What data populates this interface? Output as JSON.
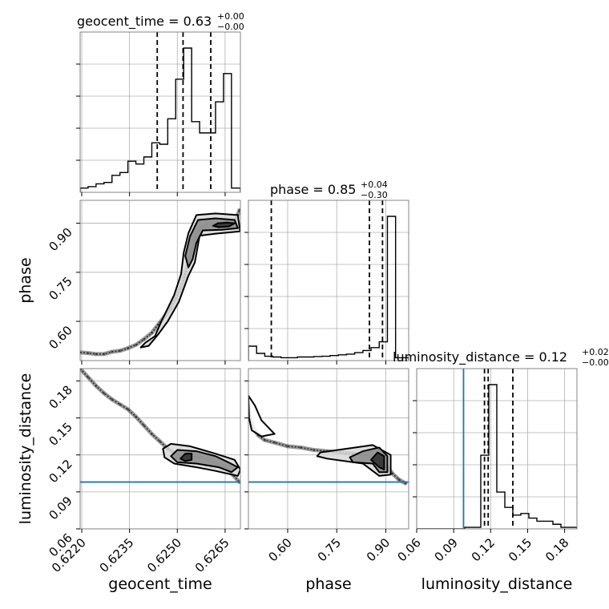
{
  "chart_data": {
    "type": "corner",
    "truth_color": "#1f77b4",
    "titles": [
      {
        "param": "geocent_time",
        "text": "geocent_time = 0.63",
        "sup": "+0.00",
        "sub": "−0.00"
      },
      {
        "param": "phase",
        "text": "phase = 0.85",
        "sup": "+0.04",
        "sub": "−0.30"
      },
      {
        "param": "luminosity_distance",
        "text": "luminosity_distance = 0.12",
        "sup": "+0.02",
        "sub": "−0.00"
      }
    ],
    "axis_labels": {
      "x": [
        "geocent_time",
        "phase",
        "luminosity_distance"
      ],
      "y": [
        "phase",
        "luminosity_distance"
      ]
    },
    "ticks": {
      "geocent_time": [
        "0.6220",
        "0.6235",
        "0.6250",
        "0.6265"
      ],
      "phase": [
        "0.60",
        "0.75",
        "0.90"
      ],
      "luminosity_distance": [
        "0.06",
        "0.09",
        "0.12",
        "0.15",
        "0.18"
      ]
    },
    "ranges": {
      "geocent_time": [
        0.62195,
        0.62698
      ],
      "phase": [
        0.48,
        0.97
      ],
      "luminosity_distance": [
        0.06,
        0.19
      ]
    },
    "truths": {
      "luminosity_distance": 0.098
    },
    "histograms": {
      "geocent_time": {
        "edges": [
          0.62195,
          0.6222,
          0.62245,
          0.6227,
          0.62295,
          0.6232,
          0.62345,
          0.6237,
          0.62395,
          0.6242,
          0.62445,
          0.6247,
          0.62495,
          0.6252,
          0.62545,
          0.6257,
          0.62595,
          0.6262,
          0.62645,
          0.6267,
          0.62698
        ],
        "counts": [
          0.03,
          0.04,
          0.06,
          0.07,
          0.12,
          0.14,
          0.22,
          0.2,
          0.25,
          0.35,
          0.34,
          0.52,
          0.8,
          1.02,
          0.5,
          0.42,
          0.42,
          0.64,
          0.84,
          0.03
        ],
        "quantiles": [
          0.62437,
          0.62518,
          0.62605
        ]
      },
      "phase": {
        "edges": [
          0.48,
          0.505,
          0.53,
          0.555,
          0.58,
          0.605,
          0.63,
          0.655,
          0.68,
          0.705,
          0.73,
          0.755,
          0.78,
          0.805,
          0.83,
          0.855,
          0.88,
          0.905,
          0.93,
          0.955,
          0.97
        ],
        "counts": [
          0.1,
          0.05,
          0.03,
          0.025,
          0.02,
          0.02,
          0.025,
          0.025,
          0.028,
          0.03,
          0.035,
          0.04,
          0.045,
          0.055,
          0.07,
          0.09,
          0.13,
          1.0,
          0.02,
          0.02
        ],
        "quantiles": [
          0.55,
          0.85,
          0.89
        ]
      },
      "luminosity_distance": {
        "edges": [
          0.06,
          0.0665,
          0.073,
          0.0795,
          0.086,
          0.0925,
          0.099,
          0.1055,
          0.112,
          0.1185,
          0.125,
          0.1315,
          0.138,
          0.1445,
          0.151,
          0.1575,
          0.164,
          0.1705,
          0.177,
          0.1835,
          0.19
        ],
        "counts": [
          0,
          0,
          0,
          0,
          0,
          0,
          0.01,
          0.01,
          0.48,
          0.94,
          0.24,
          0.14,
          0.09,
          0.1,
          0.07,
          0.05,
          0.05,
          0.03,
          0.01,
          0.01
        ],
        "quantiles": [
          0.115,
          0.118,
          0.138
        ]
      }
    },
    "samples_2d": {
      "phase_vs_geocent_time": [
        [
          0.62195,
          0.505
        ],
        [
          0.6222,
          0.503
        ],
        [
          0.62245,
          0.5
        ],
        [
          0.6227,
          0.5
        ],
        [
          0.62295,
          0.507
        ],
        [
          0.6232,
          0.51
        ],
        [
          0.62345,
          0.518
        ],
        [
          0.6237,
          0.528
        ],
        [
          0.62395,
          0.545
        ],
        [
          0.6242,
          0.565
        ],
        [
          0.6244,
          0.59
        ],
        [
          0.6246,
          0.615
        ],
        [
          0.62478,
          0.64
        ],
        [
          0.62495,
          0.67
        ],
        [
          0.6251,
          0.7
        ],
        [
          0.62522,
          0.735
        ],
        [
          0.62532,
          0.77
        ],
        [
          0.62542,
          0.81
        ],
        [
          0.62555,
          0.85
        ],
        [
          0.6257,
          0.88
        ],
        [
          0.62595,
          0.895
        ],
        [
          0.62625,
          0.9
        ],
        [
          0.62655,
          0.9
        ],
        [
          0.6268,
          0.9
        ],
        [
          0.62695,
          0.94
        ]
      ],
      "luminosity_distance_vs_geocent_time": [
        [
          0.62195,
          0.19
        ],
        [
          0.6222,
          0.183
        ],
        [
          0.62245,
          0.176
        ],
        [
          0.6227,
          0.17
        ],
        [
          0.62295,
          0.165
        ],
        [
          0.6232,
          0.161
        ],
        [
          0.62345,
          0.157
        ],
        [
          0.6237,
          0.151
        ],
        [
          0.62395,
          0.144
        ],
        [
          0.6242,
          0.137
        ],
        [
          0.62445,
          0.131
        ],
        [
          0.6247,
          0.125
        ],
        [
          0.62495,
          0.121
        ],
        [
          0.6252,
          0.119
        ],
        [
          0.62545,
          0.119
        ],
        [
          0.6257,
          0.118
        ],
        [
          0.62595,
          0.116
        ],
        [
          0.6262,
          0.113
        ],
        [
          0.62645,
          0.111
        ],
        [
          0.6267,
          0.105
        ],
        [
          0.62695,
          0.098
        ]
      ],
      "luminosity_distance_vs_phase": [
        [
          0.48,
          0.16
        ],
        [
          0.485,
          0.15
        ],
        [
          0.495,
          0.142
        ],
        [
          0.51,
          0.136
        ],
        [
          0.53,
          0.132
        ],
        [
          0.56,
          0.13
        ],
        [
          0.6,
          0.127
        ],
        [
          0.64,
          0.126
        ],
        [
          0.68,
          0.124
        ],
        [
          0.72,
          0.123
        ],
        [
          0.76,
          0.122
        ],
        [
          0.8,
          0.121
        ],
        [
          0.84,
          0.12
        ],
        [
          0.88,
          0.118
        ],
        [
          0.9,
          0.112
        ],
        [
          0.92,
          0.105
        ],
        [
          0.94,
          0.1
        ],
        [
          0.96,
          0.097
        ]
      ]
    },
    "contours": {
      "phase_vs_geocent_time": [
        [
          [
            0.62612,
            0.892
          ],
          [
            0.62628,
            0.9
          ],
          [
            0.62655,
            0.902
          ],
          [
            0.6268,
            0.9
          ],
          [
            0.62662,
            0.89
          ],
          [
            0.6263,
            0.888
          ]
        ],
        [
          [
            0.62525,
            0.8
          ],
          [
            0.6254,
            0.86
          ],
          [
            0.62565,
            0.91
          ],
          [
            0.6262,
            0.915
          ],
          [
            0.6268,
            0.91
          ],
          [
            0.6269,
            0.885
          ],
          [
            0.6264,
            0.88
          ],
          [
            0.6258,
            0.878
          ],
          [
            0.6256,
            0.84
          ],
          [
            0.62548,
            0.79
          ],
          [
            0.62535,
            0.765
          ]
        ],
        [
          [
            0.624,
            0.535
          ],
          [
            0.6243,
            0.555
          ],
          [
            0.6245,
            0.6
          ],
          [
            0.6249,
            0.68
          ],
          [
            0.62512,
            0.745
          ],
          [
            0.6252,
            0.81
          ],
          [
            0.62535,
            0.87
          ],
          [
            0.6256,
            0.925
          ],
          [
            0.6262,
            0.93
          ],
          [
            0.6269,
            0.925
          ],
          [
            0.62697,
            0.875
          ],
          [
            0.6262,
            0.868
          ],
          [
            0.6257,
            0.862
          ],
          [
            0.62555,
            0.78
          ],
          [
            0.62535,
            0.74
          ],
          [
            0.62505,
            0.66
          ],
          [
            0.6247,
            0.6
          ],
          [
            0.6244,
            0.56
          ],
          [
            0.6241,
            0.525
          ],
          [
            0.62385,
            0.52
          ]
        ]
      ],
      "luminosity_distance_vs_geocent_time": [
        [
          [
            0.6251,
            0.117
          ],
          [
            0.62525,
            0.121
          ],
          [
            0.62545,
            0.121
          ],
          [
            0.62545,
            0.116
          ],
          [
            0.62525,
            0.115
          ]
        ],
        [
          [
            0.6248,
            0.119
          ],
          [
            0.625,
            0.124
          ],
          [
            0.6256,
            0.123
          ],
          [
            0.6262,
            0.119
          ],
          [
            0.6266,
            0.114
          ],
          [
            0.6269,
            0.11
          ],
          [
            0.6267,
            0.106
          ],
          [
            0.6263,
            0.11
          ],
          [
            0.6256,
            0.113
          ],
          [
            0.625,
            0.114
          ]
        ],
        [
          [
            0.62455,
            0.125
          ],
          [
            0.6248,
            0.129
          ],
          [
            0.6254,
            0.127
          ],
          [
            0.6262,
            0.121
          ],
          [
            0.6268,
            0.116
          ],
          [
            0.62698,
            0.108
          ],
          [
            0.6269,
            0.103
          ],
          [
            0.6262,
            0.107
          ],
          [
            0.6256,
            0.11
          ],
          [
            0.6249,
            0.113
          ],
          [
            0.6246,
            0.118
          ]
        ]
      ],
      "luminosity_distance_vs_phase": [
        [
          [
            0.855,
            0.116
          ],
          [
            0.875,
            0.122
          ],
          [
            0.895,
            0.119
          ],
          [
            0.895,
            0.108
          ],
          [
            0.88,
            0.11
          ]
        ],
        [
          [
            0.79,
            0.118
          ],
          [
            0.83,
            0.123
          ],
          [
            0.88,
            0.126
          ],
          [
            0.905,
            0.119
          ],
          [
            0.905,
            0.106
          ],
          [
            0.88,
            0.106
          ],
          [
            0.86,
            0.113
          ],
          [
            0.8,
            0.114
          ]
        ],
        [
          [
            0.7,
            0.122
          ],
          [
            0.78,
            0.125
          ],
          [
            0.86,
            0.128
          ],
          [
            0.915,
            0.12
          ],
          [
            0.915,
            0.104
          ],
          [
            0.88,
            0.103
          ],
          [
            0.83,
            0.113
          ],
          [
            0.72,
            0.117
          ],
          [
            0.69,
            0.119
          ]
        ],
        [
          [
            0.48,
            0.168
          ],
          [
            0.5,
            0.16
          ],
          [
            0.52,
            0.148
          ],
          [
            0.56,
            0.137
          ],
          [
            0.52,
            0.135
          ],
          [
            0.49,
            0.14
          ],
          [
            0.482,
            0.15
          ]
        ]
      ]
    }
  }
}
